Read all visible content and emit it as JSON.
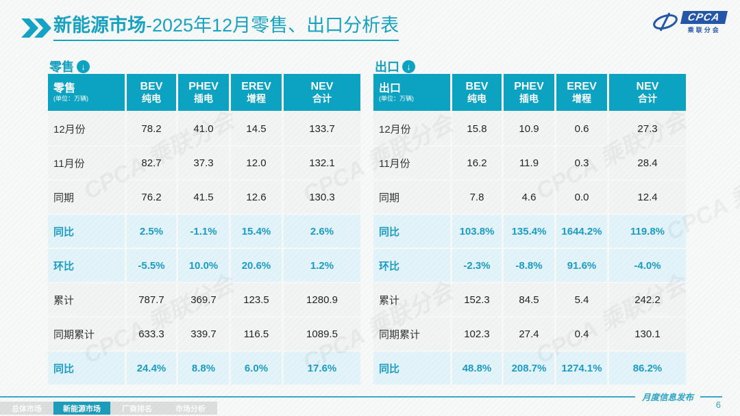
{
  "accent_color": "#0ba3c1",
  "title": {
    "bold": "新能源市场",
    "rest": "-2025年12月零售、出口分析表"
  },
  "logo": {
    "name": "CPCA",
    "subtitle": "乘联分会"
  },
  "watermark": "CPCA 乘联分会",
  "tables": [
    {
      "section_label": "零售",
      "corner_title": "零售",
      "unit": "(单位：万辆)",
      "columns": [
        {
          "en": "BEV",
          "cn": "纯电"
        },
        {
          "en": "PHEV",
          "cn": "插电"
        },
        {
          "en": "EREV",
          "cn": "增程"
        },
        {
          "en": "NEV",
          "cn": "合计"
        }
      ],
      "rows": [
        {
          "label": "12月份",
          "values": [
            "78.2",
            "41.0",
            "14.5",
            "133.7"
          ],
          "highlight": false
        },
        {
          "label": "11月份",
          "values": [
            "82.7",
            "37.3",
            "12.0",
            "132.1"
          ],
          "highlight": false
        },
        {
          "label": "同期",
          "values": [
            "76.2",
            "41.5",
            "12.6",
            "130.3"
          ],
          "highlight": false
        },
        {
          "label": "同比",
          "values": [
            "2.5%",
            "-1.1%",
            "15.4%",
            "2.6%"
          ],
          "highlight": true
        },
        {
          "label": "环比",
          "values": [
            "-5.5%",
            "10.0%",
            "20.6%",
            "1.2%"
          ],
          "highlight": true
        },
        {
          "label": "累计",
          "values": [
            "787.7",
            "369.7",
            "123.5",
            "1280.9"
          ],
          "highlight": false
        },
        {
          "label": "同期累计",
          "values": [
            "633.3",
            "339.7",
            "116.5",
            "1089.5"
          ],
          "highlight": false
        },
        {
          "label": "同比",
          "values": [
            "24.4%",
            "8.8%",
            "6.0%",
            "17.6%"
          ],
          "highlight": true
        }
      ]
    },
    {
      "section_label": "出口",
      "corner_title": "出口",
      "unit": "(单位：万辆)",
      "columns": [
        {
          "en": "BEV",
          "cn": "纯电"
        },
        {
          "en": "PHEV",
          "cn": "插电"
        },
        {
          "en": "EREV",
          "cn": "增程"
        },
        {
          "en": "NEV",
          "cn": "合计"
        }
      ],
      "rows": [
        {
          "label": "12月份",
          "values": [
            "15.8",
            "10.9",
            "0.6",
            "27.3"
          ],
          "highlight": false
        },
        {
          "label": "11月份",
          "values": [
            "16.2",
            "11.9",
            "0.3",
            "28.4"
          ],
          "highlight": false
        },
        {
          "label": "同期",
          "values": [
            "7.8",
            "4.6",
            "0.0",
            "12.4"
          ],
          "highlight": false
        },
        {
          "label": "同比",
          "values": [
            "103.8%",
            "135.4%",
            "1644.2%",
            "119.8%"
          ],
          "highlight": true
        },
        {
          "label": "环比",
          "values": [
            "-2.3%",
            "-8.8%",
            "91.6%",
            "-4.0%"
          ],
          "highlight": true
        },
        {
          "label": "累计",
          "values": [
            "152.3",
            "84.5",
            "5.4",
            "242.2"
          ],
          "highlight": false
        },
        {
          "label": "同期累计",
          "values": [
            "102.3",
            "27.4",
            "0.4",
            "130.1"
          ],
          "highlight": false
        },
        {
          "label": "同比",
          "values": [
            "48.8%",
            "208.7%",
            "1274.1%",
            "86.2%"
          ],
          "highlight": true
        }
      ]
    }
  ],
  "footer": {
    "tabs": [
      {
        "label": "总体市场",
        "active": false
      },
      {
        "label": "新能源市场",
        "active": true
      },
      {
        "label": "厂商排名",
        "active": false
      },
      {
        "label": "市场分析",
        "active": false
      }
    ],
    "publication": "月度信息发布",
    "page": "6"
  }
}
